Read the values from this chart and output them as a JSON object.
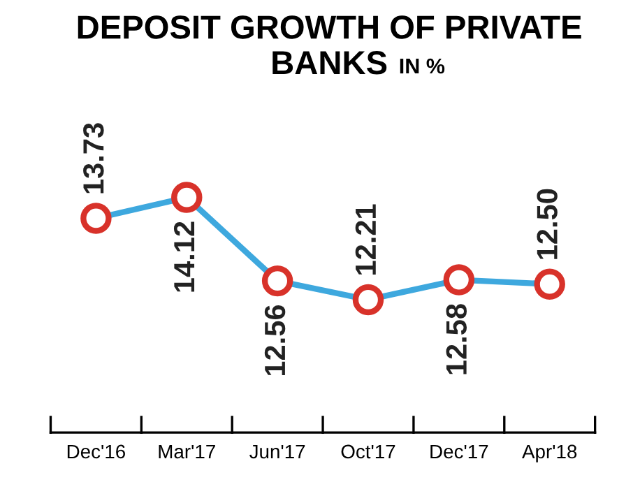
{
  "chart_data": {
    "type": "line",
    "title": "DEPOSIT GROWTH OF PRIVATE BANKS",
    "subtitle": "IN %",
    "categories": [
      "Dec'16",
      "Mar'17",
      "Jun'17",
      "Oct'17",
      "Dec'17",
      "Apr'18"
    ],
    "series": [
      {
        "color": "#3ea8de",
        "values": [
          13.73,
          14.12,
          12.56,
          12.21,
          12.58,
          12.5
        ],
        "value_labels": [
          "13.73",
          "14.12",
          "12.56",
          "12.21",
          "12.58",
          "12.50"
        ]
      }
    ],
    "marker": "circle",
    "grid": false,
    "legend": false
  }
}
